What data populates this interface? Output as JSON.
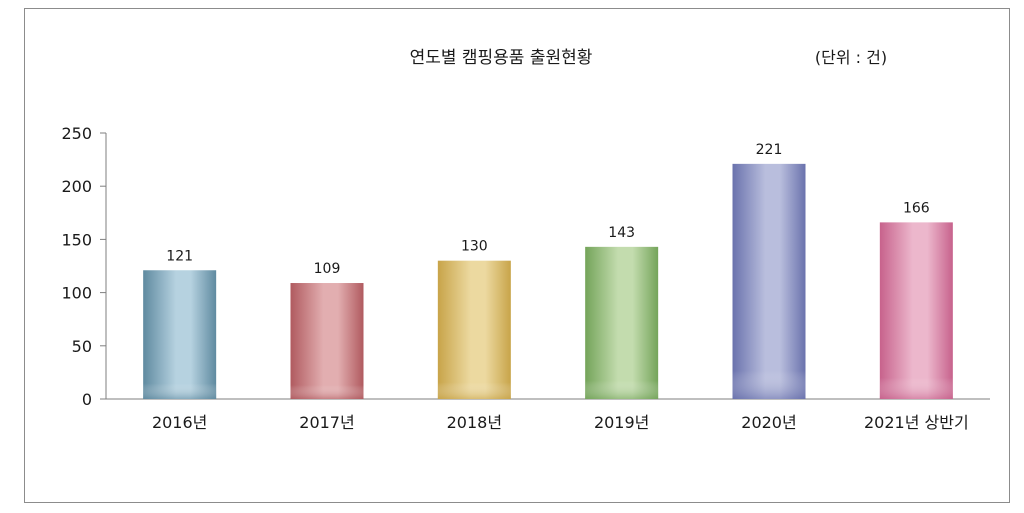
{
  "chart_data": {
    "type": "bar",
    "title": "연도별  캠핑용품 출원현황",
    "unit_label": "(단위 : 건)",
    "categories": [
      "2016년",
      "2017년",
      "2018년",
      "2019년",
      "2020년",
      "2021년 상반기"
    ],
    "values": [
      121,
      109,
      130,
      143,
      221,
      166
    ],
    "value_labels": [
      "121",
      "109",
      "130",
      "143",
      "221",
      "166"
    ],
    "ylim": [
      0,
      250
    ],
    "yticks": [
      0,
      50,
      100,
      150,
      200,
      250
    ],
    "ytick_labels": [
      "0",
      "50",
      "100",
      "150",
      "200",
      "250"
    ],
    "grid": false,
    "colors": [
      {
        "dark": "#5f8aa0",
        "light": "#b6d2e0"
      },
      {
        "dark": "#b05a5f",
        "light": "#e2aeb0"
      },
      {
        "dark": "#c8a449",
        "light": "#ecd9a0"
      },
      {
        "dark": "#74a45a",
        "light": "#c3dcae"
      },
      {
        "dark": "#6a72ad",
        "light": "#b9bedd"
      },
      {
        "dark": "#c7628c",
        "light": "#ecb7cc"
      }
    ]
  }
}
